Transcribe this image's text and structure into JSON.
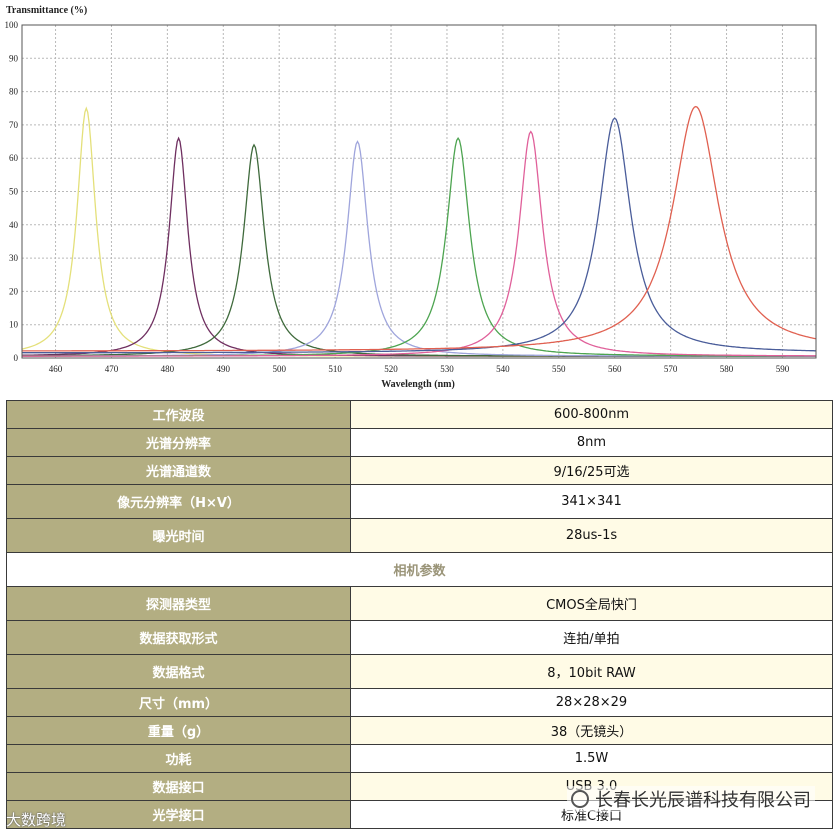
{
  "chart_data": {
    "type": "line",
    "ylabel": "Transmittance (%)",
    "xlabel": "Wavelength (nm)",
    "xlim": [
      454,
      596
    ],
    "ylim": [
      0,
      100
    ],
    "xticks": [
      460,
      470,
      480,
      490,
      500,
      510,
      520,
      530,
      540,
      550,
      560,
      570,
      580,
      590
    ],
    "yticks": [
      0,
      10,
      20,
      30,
      40,
      50,
      60,
      70,
      80,
      90,
      100
    ],
    "grid": true,
    "series": [
      {
        "color": "#e4e07a",
        "peak_x": 465.5,
        "peak_y": 75.0,
        "fwhm": 4.0,
        "baseline": 0.5
      },
      {
        "color": "#6f2f60",
        "peak_x": 482.0,
        "peak_y": 66.0,
        "fwhm": 4.0,
        "baseline": 0.5
      },
      {
        "color": "#3f6a3c",
        "peak_x": 495.5,
        "peak_y": 64.0,
        "fwhm": 4.5,
        "baseline": 0.5
      },
      {
        "color": "#9fa5dc",
        "peak_x": 514.0,
        "peak_y": 65.0,
        "fwhm": 4.5,
        "baseline": 0.5
      },
      {
        "color": "#4da450",
        "peak_x": 532.0,
        "peak_y": 66.0,
        "fwhm": 5.0,
        "baseline": 0.5
      },
      {
        "color": "#e0609a",
        "peak_x": 545.0,
        "peak_y": 68.0,
        "fwhm": 5.0,
        "baseline": 0.5
      },
      {
        "color": "#4a5d9a",
        "peak_x": 560.0,
        "peak_y": 72.0,
        "fwhm": 7.0,
        "baseline": 1.5
      },
      {
        "color": "#e06050",
        "peak_x": 574.5,
        "peak_y": 75.5,
        "fwhm": 10.0,
        "baseline": 2.0
      }
    ]
  },
  "table": {
    "rows": [
      {
        "label": "工作波段",
        "value": "600-800nm"
      },
      {
        "label": "光谱分辨率",
        "value": "8nm"
      },
      {
        "label": "光谱通道数",
        "value": "9/16/25可选"
      },
      {
        "label": "像元分辨率（H×V）",
        "value": "341×341"
      },
      {
        "label": "曝光时间",
        "value": "28us-1s"
      }
    ],
    "section_title": "相机参数",
    "camera_rows": [
      {
        "label": "探测器类型",
        "value": "CMOS全局快门"
      },
      {
        "label": "数据获取形式",
        "value": "连拍/单拍"
      },
      {
        "label": "数据格式",
        "value": "8，10bit RAW"
      },
      {
        "label": "尺寸（mm）",
        "value": "28×28×29"
      },
      {
        "label": "重量（g）",
        "value": "38（无镜头）"
      },
      {
        "label": "功耗",
        "value": "1.5W"
      },
      {
        "label": "数据接口",
        "value": "USB 3.0"
      },
      {
        "label": "光学接口",
        "value": "标准C接口"
      }
    ]
  },
  "watermarks": {
    "left": "大数跨境",
    "right": "长春长光辰谱科技有限公司"
  }
}
